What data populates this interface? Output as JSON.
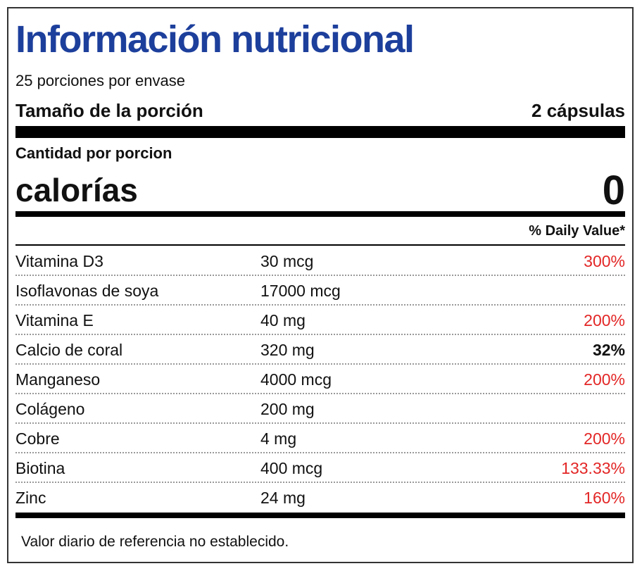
{
  "label": {
    "title": "Información nutricional",
    "servings_per_container": "25 porciones por envase",
    "serving_size_label": "Tamaño de la porción",
    "serving_size_value": "2 cápsulas",
    "amount_per_serving": "Cantidad por porcion",
    "calories_label": "calorías",
    "calories_value": "0",
    "daily_value_header": "% Daily Value*",
    "nutrients": [
      {
        "name": "Vitamina D3",
        "amount": "30 mcg",
        "dv": "300%",
        "dv_style": "red"
      },
      {
        "name": "Isoflavonas de soya",
        "amount": "17000 mcg",
        "dv": "",
        "dv_style": "none"
      },
      {
        "name": "Vitamina E",
        "amount": "40 mg",
        "dv": "200%",
        "dv_style": "red"
      },
      {
        "name": "Calcio de coral",
        "amount": "320 mg",
        "dv": "32%",
        "dv_style": "dark"
      },
      {
        "name": "Manganeso",
        "amount": "4000 mcg",
        "dv": "200%",
        "dv_style": "red"
      },
      {
        "name": "Colágeno",
        "amount": "200 mg",
        "dv": "",
        "dv_style": "none"
      },
      {
        "name": "Cobre",
        "amount": "4 mg",
        "dv": "200%",
        "dv_style": "red"
      },
      {
        "name": "Biotina",
        "amount": "400 mcg",
        "dv": "133.33%",
        "dv_style": "red"
      },
      {
        "name": "Zinc",
        "amount": "24 mg",
        "dv": "160%",
        "dv_style": "red"
      }
    ],
    "footnote": "Valor diario de referencia no establecido."
  },
  "colors": {
    "title": "#1d3f9c",
    "dv_high": "#e32626",
    "border": "#333333"
  }
}
